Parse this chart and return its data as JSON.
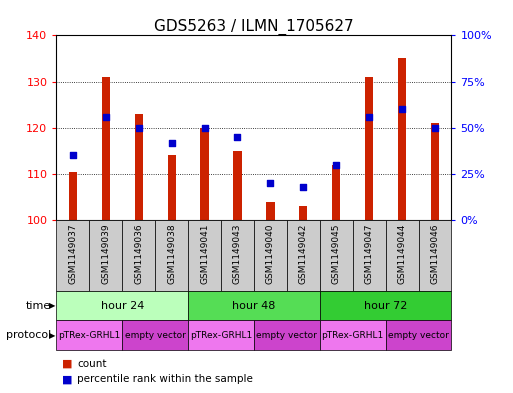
{
  "title": "GDS5263 / ILMN_1705627",
  "samples": [
    "GSM1149037",
    "GSM1149039",
    "GSM1149036",
    "GSM1149038",
    "GSM1149041",
    "GSM1149043",
    "GSM1149040",
    "GSM1149042",
    "GSM1149045",
    "GSM1149047",
    "GSM1149044",
    "GSM1149046"
  ],
  "counts": [
    110.5,
    131.0,
    123.0,
    114.0,
    120.0,
    115.0,
    104.0,
    103.0,
    112.0,
    131.0,
    135.0,
    121.0
  ],
  "percentiles": [
    35,
    56,
    50,
    42,
    50,
    45,
    20,
    18,
    30,
    56,
    60,
    50
  ],
  "ylim_left": [
    100,
    140
  ],
  "ylim_right": [
    0,
    100
  ],
  "yticks_left": [
    100,
    110,
    120,
    130,
    140
  ],
  "yticks_right": [
    0,
    25,
    50,
    75,
    100
  ],
  "ytick_labels_right": [
    "0%",
    "25%",
    "50%",
    "75%",
    "100%"
  ],
  "bar_color": "#cc2200",
  "dot_color": "#0000cc",
  "bar_width": 0.25,
  "time_groups": [
    {
      "label": "hour 24",
      "start": 0,
      "end": 4,
      "color": "#bbffbb"
    },
    {
      "label": "hour 48",
      "start": 4,
      "end": 8,
      "color": "#55dd55"
    },
    {
      "label": "hour 72",
      "start": 8,
      "end": 12,
      "color": "#33cc33"
    }
  ],
  "protocol_groups": [
    {
      "label": "pTRex-GRHL1",
      "start": 0,
      "end": 2,
      "color": "#ee77ee"
    },
    {
      "label": "empty vector",
      "start": 2,
      "end": 4,
      "color": "#cc44cc"
    },
    {
      "label": "pTRex-GRHL1",
      "start": 4,
      "end": 6,
      "color": "#ee77ee"
    },
    {
      "label": "empty vector",
      "start": 6,
      "end": 8,
      "color": "#cc44cc"
    },
    {
      "label": "pTRex-GRHL1",
      "start": 8,
      "end": 10,
      "color": "#ee77ee"
    },
    {
      "label": "empty vector",
      "start": 10,
      "end": 12,
      "color": "#cc44cc"
    }
  ],
  "time_label": "time",
  "protocol_label": "protocol",
  "legend_count_label": "count",
  "legend_percentile_label": "percentile rank within the sample",
  "background_color": "#ffffff",
  "sample_box_color": "#cccccc",
  "title_fontsize": 11,
  "tick_fontsize": 8,
  "sample_fontsize": 6.5,
  "row_fontsize": 8
}
